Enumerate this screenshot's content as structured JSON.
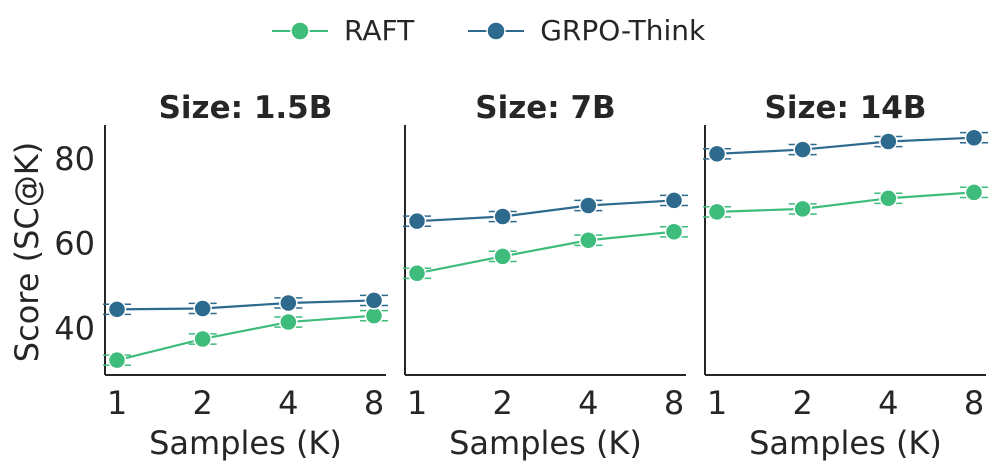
{
  "legend": {
    "items": [
      {
        "label": "RAFT",
        "color": "#3dbc7b"
      },
      {
        "label": "GRPO-Think",
        "color": "#2e6a8e"
      }
    ]
  },
  "ylabel": "Score (SC@K)",
  "xlabel": "Samples (K)",
  "chart_data": [
    {
      "type": "line",
      "title": "Size: 1.5B",
      "categories": [
        "1",
        "2",
        "4",
        "8"
      ],
      "xlabel": "Samples (K)",
      "ylabel": "Score (SC@K)",
      "ylim": [
        29,
        88
      ],
      "yticks": [
        40,
        60,
        80
      ],
      "series": [
        {
          "name": "RAFT",
          "values": [
            32.5,
            37.5,
            41.5,
            43.0
          ]
        },
        {
          "name": "GRPO-Think",
          "values": [
            44.5,
            44.7,
            46.0,
            46.6
          ]
        }
      ]
    },
    {
      "type": "line",
      "title": "Size: 7B",
      "categories": [
        "1",
        "2",
        "4",
        "8"
      ],
      "xlabel": "Samples (K)",
      "ylabel": "",
      "ylim": [
        29,
        88
      ],
      "yticks": [
        40,
        60,
        80
      ],
      "series": [
        {
          "name": "RAFT",
          "values": [
            53.0,
            57.0,
            60.8,
            62.8
          ]
        },
        {
          "name": "GRPO-Think",
          "values": [
            65.3,
            66.4,
            69.0,
            70.2
          ]
        }
      ]
    },
    {
      "type": "line",
      "title": "Size: 14B",
      "categories": [
        "1",
        "2",
        "4",
        "8"
      ],
      "xlabel": "Samples (K)",
      "ylabel": "",
      "ylim": [
        29,
        88
      ],
      "yticks": [
        40,
        60,
        80
      ],
      "series": [
        {
          "name": "RAFT",
          "values": [
            67.5,
            68.2,
            70.7,
            72.1
          ]
        },
        {
          "name": "GRPO-Think",
          "values": [
            81.2,
            82.2,
            84.1,
            85.0
          ]
        }
      ]
    }
  ]
}
